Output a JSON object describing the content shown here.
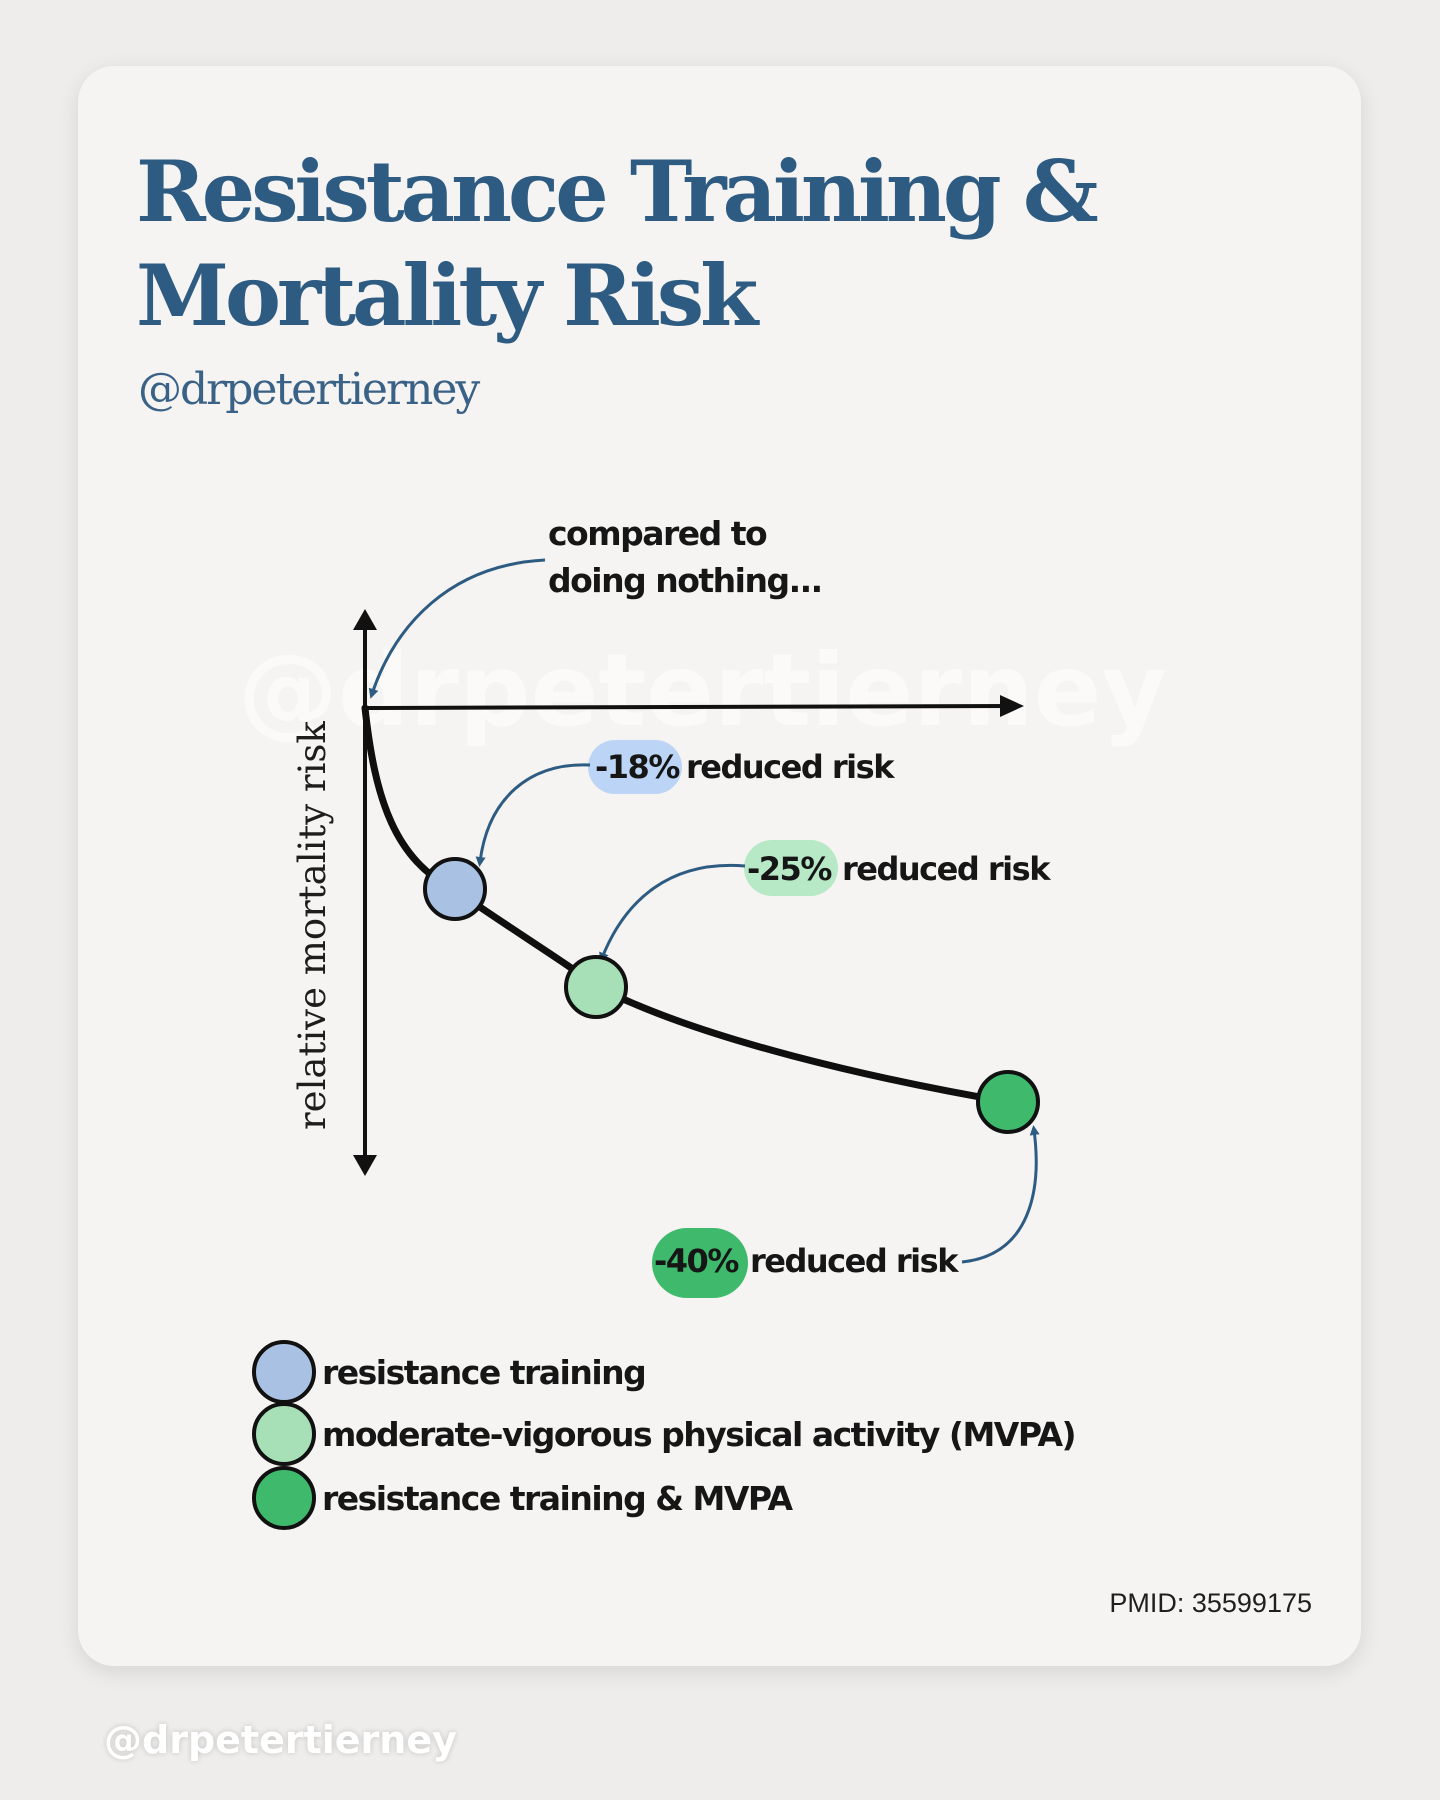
{
  "header": {
    "title_line1": "Resistance Training &",
    "title_line2": "Mortality Risk",
    "handle": "@drpetertierney"
  },
  "watermark": "@drpetertierney",
  "chart_data": {
    "type": "line",
    "ylabel": "relative mortality risk",
    "baseline_annotation": "compared to doing nothing...",
    "baseline_annotation_lines": [
      "compared to",
      "doing nothing..."
    ],
    "points": [
      {
        "label": "resistance training",
        "value_text": "-18%",
        "note": "reduced risk",
        "reduction_pct": 18,
        "color": "#a9c1e2"
      },
      {
        "label": "moderate-vigorous physical activity (MVPA)",
        "value_text": "-25%",
        "note": "reduced risk",
        "reduction_pct": 25,
        "color": "#a7dfb7"
      },
      {
        "label": "resistance training & MVPA",
        "value_text": "-40%",
        "note": "reduced risk",
        "reduction_pct": 40,
        "color": "#3fba6d"
      }
    ],
    "badge_colors": [
      "#bcd5f6",
      "#b7e9c6",
      "#3fba6d"
    ],
    "legend": [
      {
        "label": "resistance training",
        "color": "#a9c1e2"
      },
      {
        "label": "moderate-vigorous physical activity (MVPA)",
        "color": "#a7dfb7"
      },
      {
        "label": "resistance training & MVPA",
        "color": "#3fba6d"
      }
    ],
    "legend_position": "bottom-left",
    "accent_color": "#2e5b82",
    "grid": false
  },
  "footer": {
    "pmid": "PMID: 35599175",
    "handle": "@drpetertierney"
  }
}
